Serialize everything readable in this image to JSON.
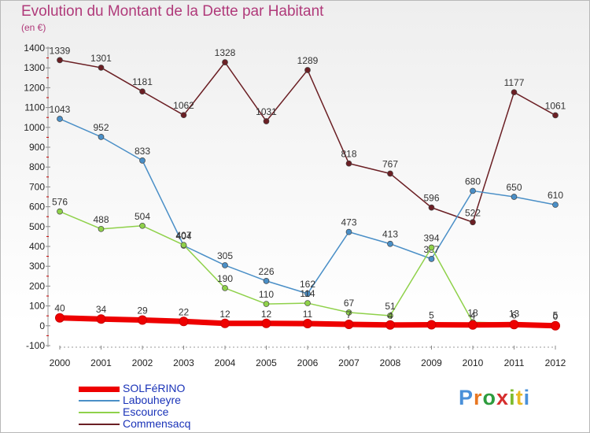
{
  "title": "Evolution du Montant de la Dette par Habitant",
  "subtitle": "(en €)",
  "logo": {
    "text": "Proxiti",
    "letters": [
      "P",
      "r",
      "o",
      "x",
      "i",
      "t",
      "i"
    ],
    "letter_colors": [
      "#4a90d9",
      "#e87722",
      "#2e9c3e",
      "#d62e2e",
      "#7dbb2e",
      "#e8b922",
      "#4a90d9"
    ]
  },
  "chart_data": {
    "type": "line",
    "title": "Evolution du Montant de la Dette par Habitant",
    "subtitle": "(en €)",
    "xlabel": "",
    "ylabel": "",
    "x": [
      2000,
      2001,
      2002,
      2003,
      2004,
      2005,
      2006,
      2007,
      2008,
      2009,
      2010,
      2011,
      2012
    ],
    "ylim": [
      -100,
      1400
    ],
    "yticks": [
      -100,
      0,
      100,
      200,
      300,
      400,
      500,
      600,
      700,
      800,
      900,
      1000,
      1100,
      1200,
      1300,
      1400
    ],
    "grid": false,
    "legend_position": "bottom-left",
    "series": [
      {
        "name": "Commensacq",
        "color": "#6b1f24",
        "values": [
          1339,
          1301,
          1181,
          1062,
          1328,
          1031,
          1289,
          818,
          767,
          596,
          522,
          1177,
          1061
        ],
        "labels": [
          "1339",
          "1301",
          "1181",
          "1062",
          "1328",
          "1031",
          "1289",
          "818",
          "767",
          "596",
          "522",
          "1177",
          "1061"
        ]
      },
      {
        "name": "Labouheyre",
        "color": "#4a8fc7",
        "values": [
          1043,
          952,
          833,
          404,
          305,
          226,
          162,
          473,
          413,
          337,
          680,
          650,
          610
        ],
        "labels": [
          "1043",
          "952",
          "833",
          "404",
          "305",
          "226",
          "162",
          "473",
          "413",
          "337",
          "680",
          "650",
          "610"
        ]
      },
      {
        "name": "Escource",
        "color": "#8fd14a",
        "values": [
          576,
          488,
          504,
          407,
          190,
          110,
          114,
          67,
          51,
          394,
          18,
          13,
          5
        ],
        "labels": [
          "576",
          "488",
          "504",
          "407",
          "190",
          "110",
          "114",
          "67",
          "51",
          "394",
          "18",
          "13",
          "5"
        ]
      },
      {
        "name": "SOLFéRINO",
        "color": "#ee0000",
        "values": [
          40,
          34,
          29,
          22,
          12,
          12,
          11,
          7,
          4,
          5,
          4,
          6,
          0
        ],
        "labels": [
          "40",
          "34",
          "29",
          "22",
          "12",
          "12",
          "11",
          "7",
          "4",
          "5",
          "4",
          "6",
          "0"
        ]
      }
    ],
    "legend": [
      "SOLFéRINO",
      "Labouheyre",
      "Escource",
      "Commensacq"
    ]
  }
}
